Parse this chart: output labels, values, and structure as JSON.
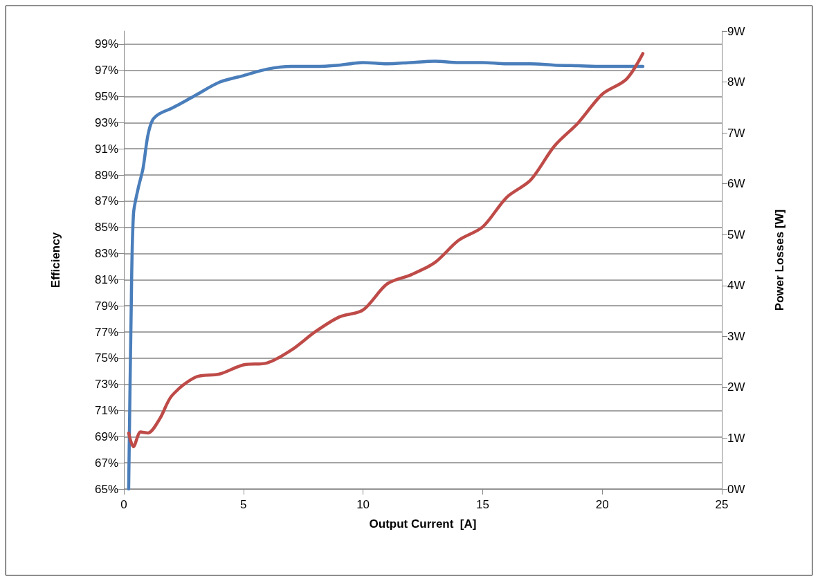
{
  "chart_data": {
    "type": "line",
    "xlabel": "Output Current  [A]",
    "ylabel": "Efficiency",
    "y2label": "Power Losses [W]",
    "xlim": [
      0,
      25
    ],
    "xticks": [
      0,
      5,
      10,
      15,
      20,
      25
    ],
    "ylim": [
      65,
      100
    ],
    "yticks": [
      {
        "value": 65,
        "label": "65%"
      },
      {
        "value": 67,
        "label": "67%"
      },
      {
        "value": 69,
        "label": "69%"
      },
      {
        "value": 71,
        "label": "71%"
      },
      {
        "value": 73,
        "label": "73%"
      },
      {
        "value": 75,
        "label": "75%"
      },
      {
        "value": 77,
        "label": "77%"
      },
      {
        "value": 79,
        "label": "79%"
      },
      {
        "value": 81,
        "label": "81%"
      },
      {
        "value": 83,
        "label": "83%"
      },
      {
        "value": 85,
        "label": "85%"
      },
      {
        "value": 87,
        "label": "87%"
      },
      {
        "value": 89,
        "label": "89%"
      },
      {
        "value": 91,
        "label": "91%"
      },
      {
        "value": 93,
        "label": "93%"
      },
      {
        "value": 95,
        "label": "95%"
      },
      {
        "value": 97,
        "label": "97%"
      },
      {
        "value": 99,
        "label": "99%"
      }
    ],
    "y2lim": [
      0,
      9
    ],
    "y2ticks": [
      {
        "value": 0,
        "label": "0W"
      },
      {
        "value": 1,
        "label": "1W"
      },
      {
        "value": 2,
        "label": "2W"
      },
      {
        "value": 3,
        "label": "3W"
      },
      {
        "value": 4,
        "label": "4W"
      },
      {
        "value": 5,
        "label": "5W"
      },
      {
        "value": 6,
        "label": "6W"
      },
      {
        "value": 7,
        "label": "7W"
      },
      {
        "value": 8,
        "label": "8W"
      },
      {
        "value": 9,
        "label": "9W"
      }
    ],
    "grid": "y",
    "marker": "none",
    "line_style": "solid",
    "series": [
      {
        "color": "#4a7ebb",
        "x": [
          0.2,
          0.3,
          0.4,
          0.6,
          0.8,
          1.0,
          1.2,
          1.5,
          2,
          3,
          4,
          5,
          6,
          7,
          8,
          9,
          10,
          11,
          12,
          13,
          14,
          15,
          16,
          17,
          18,
          19,
          20,
          21,
          21.7
        ],
        "values": [
          65,
          78,
          86,
          88,
          89.5,
          92,
          93.2,
          93.7,
          94.1,
          95.1,
          96.1,
          96.6,
          97.1,
          97.3,
          97.3,
          97.4,
          97.6,
          97.5,
          97.6,
          97.7,
          97.6,
          97.6,
          97.5,
          97.5,
          97.4,
          97.35,
          97.3,
          97.3,
          97.3
        ]
      },
      {
        "color": "#be4b48",
        "axis": "y2",
        "x": [
          0.2,
          0.4,
          0.7,
          1.0,
          1.5,
          2,
          3,
          4,
          5,
          6,
          7,
          8,
          9,
          10,
          11,
          12,
          13,
          14,
          15,
          16,
          17,
          18,
          19,
          20,
          21,
          21.7
        ],
        "values": [
          1.1,
          0.83,
          1.12,
          1.1,
          1.38,
          1.83,
          2.2,
          2.26,
          2.44,
          2.48,
          2.73,
          3.09,
          3.38,
          3.52,
          4.03,
          4.21,
          4.45,
          4.89,
          5.15,
          5.73,
          6.07,
          6.74,
          7.2,
          7.76,
          8.05,
          8.56
        ]
      }
    ]
  }
}
